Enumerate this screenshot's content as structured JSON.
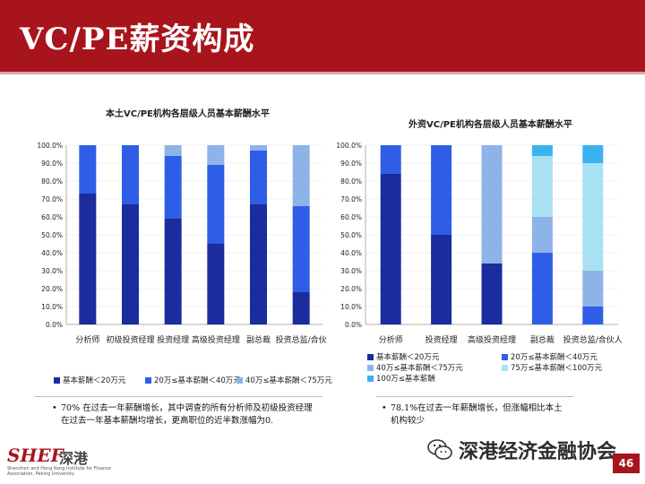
{
  "header": {
    "title": "VC/PE薪资构成"
  },
  "colors": {
    "dark": "#1a2c9e",
    "mid": "#2f5ee6",
    "light": "#8db3e8",
    "lighter": "#a9e0f2",
    "cyan": "#3ab3f0",
    "brand": "#a8141c"
  },
  "chart_data": [
    {
      "type": "bar",
      "stacked": true,
      "title": "本土VC/PE机构各层级人员基本薪酬水平",
      "categories": [
        "分析师",
        "初级投资经理",
        "投资经理",
        "高级投资经理",
        "副总裁",
        "投资总监/合伙"
      ],
      "yticks": [
        "0.0%",
        "10.0%",
        "20.0%",
        "30.0%",
        "40.0%",
        "50.0%",
        "60.0%",
        "70.0%",
        "80.0%",
        "90.0%",
        "100.0%"
      ],
      "ylim": [
        0,
        100
      ],
      "series": [
        {
          "name": "基本薪酬＜20万元",
          "color": "#1a2c9e",
          "values": [
            73,
            67,
            59,
            45,
            67,
            18
          ]
        },
        {
          "name": "20万≤基本薪酬＜40万元",
          "color": "#2f5ee6",
          "values": [
            27,
            33,
            35,
            44,
            30,
            48
          ]
        },
        {
          "name": "40万≤基本薪酬＜75万元",
          "color": "#8db3e8",
          "values": [
            0,
            0,
            6,
            11,
            3,
            34
          ]
        }
      ],
      "legend": [
        "基本薪酬＜20万元",
        "20万≤基本薪酬＜40万元",
        "40万≤基本薪酬＜75万元"
      ]
    },
    {
      "type": "bar",
      "stacked": true,
      "title": "外资VC/PE机构各层级人员基本薪酬水平",
      "categories": [
        "分析师",
        "投资经理",
        "高级投资经理",
        "副总裁",
        "投资总监/合伙人"
      ],
      "yticks": [
        "0.0%",
        "10.0%",
        "20.0%",
        "30.0%",
        "40.0%",
        "50.0%",
        "60.0%",
        "70.0%",
        "80.0%",
        "90.0%",
        "100.0%"
      ],
      "ylim": [
        0,
        100
      ],
      "series": [
        {
          "name": "基本薪酬＜20万元",
          "color": "#1a2c9e",
          "values": [
            84,
            50,
            34,
            0,
            0
          ]
        },
        {
          "name": "20万≤基本薪酬＜40万元",
          "color": "#2f5ee6",
          "values": [
            16,
            50,
            0,
            40,
            10
          ]
        },
        {
          "name": "40万≤基本薪酬＜75万元",
          "color": "#8db3e8",
          "values": [
            0,
            0,
            66,
            20,
            20
          ]
        },
        {
          "name": "75万≤基本薪酬＜100万元",
          "color": "#a9e0f2",
          "values": [
            0,
            0,
            0,
            34,
            60
          ]
        },
        {
          "name": "100万≤基本薪酬",
          "color": "#3ab3f0",
          "values": [
            0,
            0,
            0,
            6,
            10
          ]
        }
      ],
      "legend": [
        "基本薪酬＜20万元",
        "20万≤基本薪酬＜40万元",
        "40万≤基本薪酬＜75万元",
        "75万≤基本薪酬＜100万元",
        "100万≤基本薪酬"
      ]
    }
  ],
  "notes": {
    "left": "70% 在过去一年薪酬增长，其中调查的所有分析师及初级投资经理在过去一年基本薪酬均增长，更高职位的近半数涨幅为0.",
    "right": "78.1%在过去一年薪酬增长，但涨幅相比本土机构较少"
  },
  "bullet": "•",
  "footer": {
    "logo_mark": "SHEF",
    "logo_cn": "深港",
    "logo_sub": "Shenzhen and Hong Kong Institute for Finance Association, Peking University",
    "watermark": "深港经济金融协会",
    "page": "46"
  }
}
